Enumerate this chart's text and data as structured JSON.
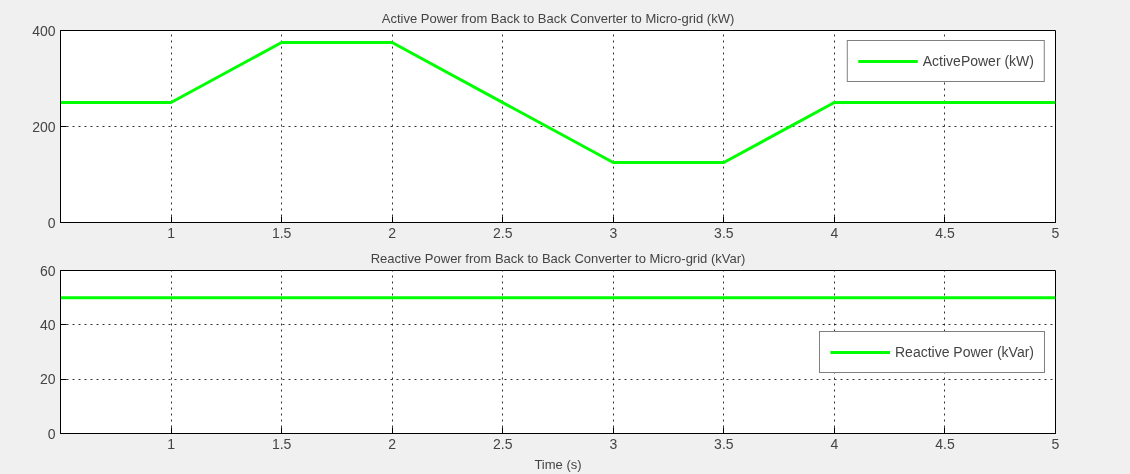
{
  "chart_data": [
    {
      "type": "line",
      "title": "Active Power from Back to Back Converter to Micro-grid (kW)",
      "x": [
        0.5,
        1,
        1.5,
        2,
        3,
        3.5,
        4,
        5
      ],
      "series": [
        {
          "name": "ActivePower (kW)",
          "color": "#00ff00",
          "values": [
            250,
            250,
            375,
            375,
            125,
            125,
            250,
            250
          ]
        }
      ],
      "xlim": [
        0.5,
        5
      ],
      "ylim": [
        0,
        400
      ],
      "xticks": [
        1,
        1.5,
        2,
        2.5,
        3,
        3.5,
        4,
        4.5,
        5
      ],
      "yticks": [
        0,
        200,
        400
      ],
      "grid": true,
      "legend": "top right",
      "line_style": "solid"
    },
    {
      "type": "line",
      "title": "Reactive Power from Back to Back Converter to Micro-grid (kVar)",
      "xlabel": "Time (s)",
      "x": [
        0.5,
        5
      ],
      "series": [
        {
          "name": "Reactive Power (kVar)",
          "color": "#00ff00",
          "values": [
            50,
            50
          ]
        }
      ],
      "xlim": [
        0.5,
        5
      ],
      "ylim": [
        0,
        60
      ],
      "xticks": [
        1,
        1.5,
        2,
        2.5,
        3,
        3.5,
        4,
        4.5,
        5
      ],
      "yticks": [
        0,
        20,
        40,
        60
      ],
      "grid": true,
      "legend": "right",
      "line_style": "solid"
    }
  ]
}
